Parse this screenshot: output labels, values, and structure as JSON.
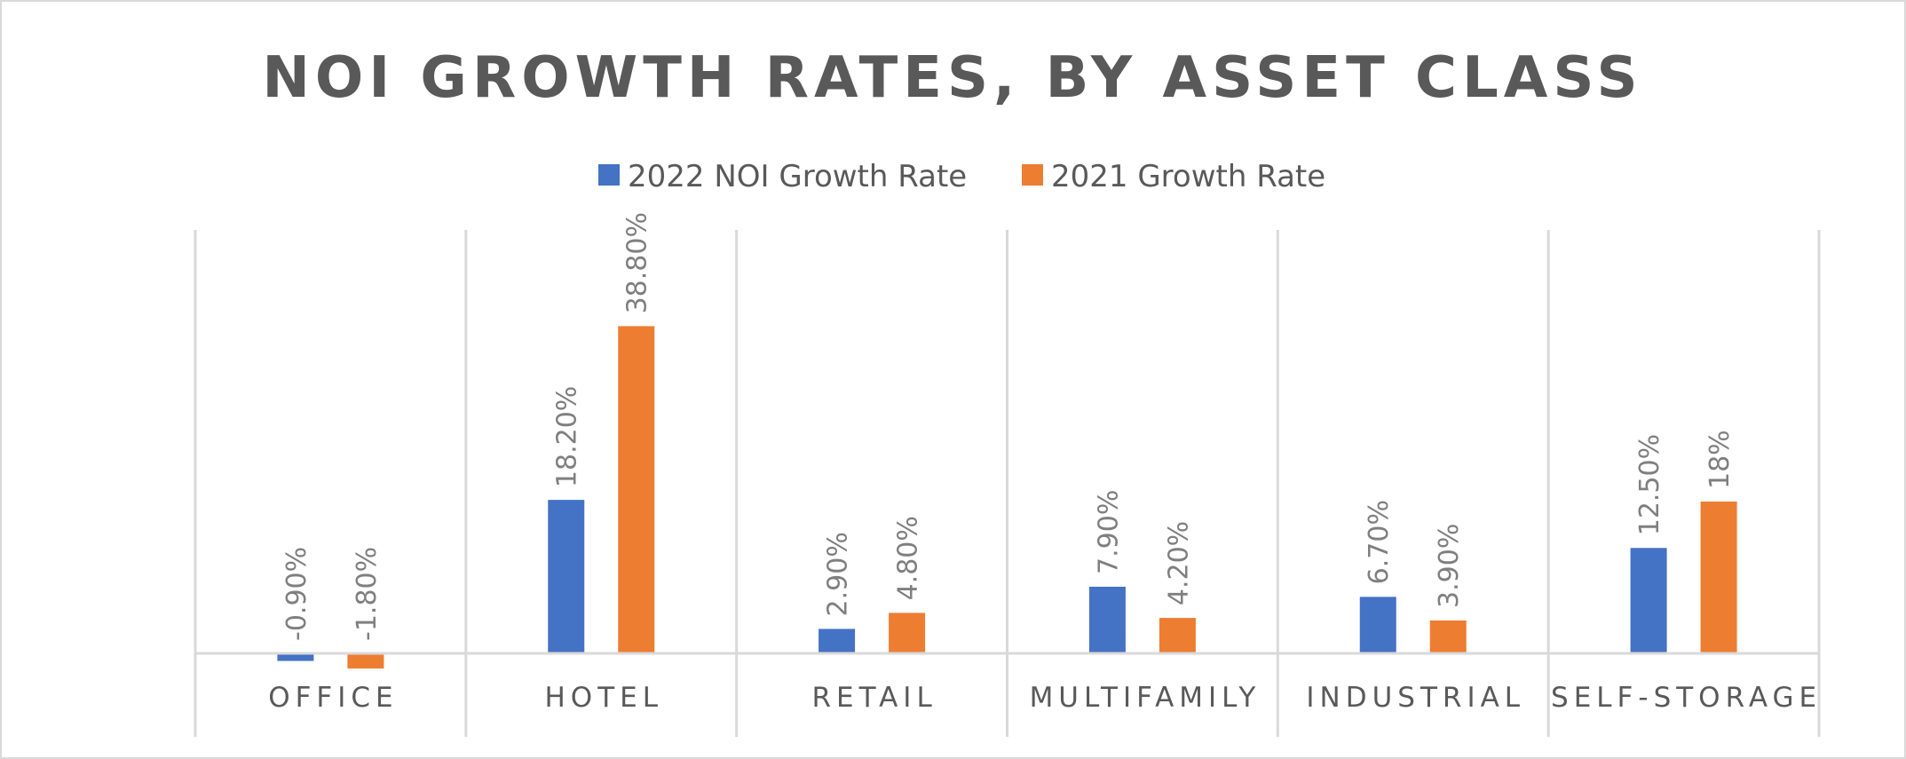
{
  "chart_data": {
    "type": "bar",
    "title": "NOI GROWTH RATES, BY ASSET CLASS",
    "xlabel": "",
    "ylabel": "",
    "categories": [
      "OFFICE",
      "HOTEL",
      "RETAIL",
      "MULTIFAMILY",
      "INDUSTRIAL",
      "SELF-STORAGE"
    ],
    "series": [
      {
        "name": "2022 NOI Growth Rate",
        "color": "#4472c4",
        "values": [
          -0.9,
          18.2,
          2.9,
          7.9,
          6.7,
          12.5
        ],
        "labels": [
          "-0.90%",
          "18.20%",
          "2.90%",
          "7.90%",
          "6.70%",
          "12.50%"
        ]
      },
      {
        "name": "2021 Growth Rate",
        "color": "#ed7d31",
        "values": [
          -1.8,
          38.8,
          4.8,
          4.2,
          3.9,
          18
        ],
        "labels": [
          "-1.80%",
          "38.80%",
          "4.80%",
          "4.20%",
          "3.90%",
          "18%"
        ]
      }
    ],
    "ylim": [
      -10,
      50
    ],
    "grid": false,
    "legend_position": "top"
  }
}
